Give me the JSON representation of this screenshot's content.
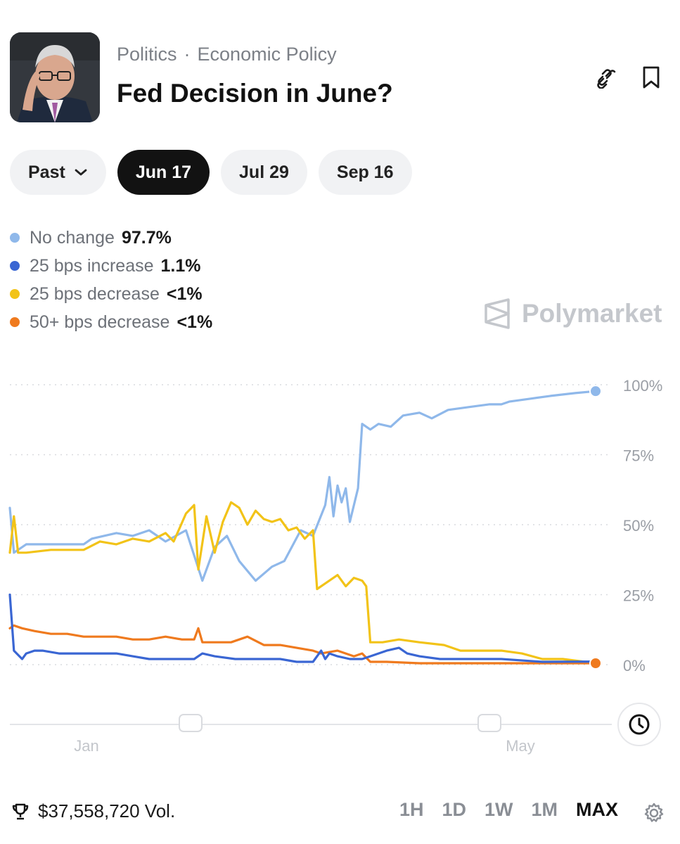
{
  "header": {
    "category": "Politics",
    "separator": "·",
    "subcategory": "Economic Policy",
    "title": "Fed Decision in June?"
  },
  "date_tabs": [
    {
      "label": "Past",
      "active": false,
      "dropdown": true
    },
    {
      "label": "Jun 17",
      "active": true
    },
    {
      "label": "Jul 29",
      "active": false
    },
    {
      "label": "Sep 16",
      "active": false
    }
  ],
  "legend": [
    {
      "name": "No change",
      "value": "97.7%",
      "color": "#8fb8ea"
    },
    {
      "name": "25 bps increase",
      "value": "1.1%",
      "color": "#3a66d3"
    },
    {
      "name": "25 bps decrease",
      "value": "<1%",
      "color": "#f2c318"
    },
    {
      "name": "50+ bps decrease",
      "value": "<1%",
      "color": "#ef7a1e"
    }
  ],
  "watermark": "Polymarket",
  "chart_data": {
    "type": "line",
    "x_ticks": [
      "Jan",
      "May"
    ],
    "y_ticks": [
      "100%",
      "75%",
      "50%",
      "25%",
      "0%"
    ],
    "ylim": [
      0,
      100
    ],
    "grid": "dotted horizontal",
    "series": [
      {
        "name": "No change",
        "color": "#8fb8ea",
        "points": [
          [
            0,
            56
          ],
          [
            1,
            40
          ],
          [
            4,
            43
          ],
          [
            10,
            43
          ],
          [
            18,
            43
          ],
          [
            20,
            45
          ],
          [
            26,
            47
          ],
          [
            30,
            46
          ],
          [
            34,
            48
          ],
          [
            38,
            44
          ],
          [
            43,
            48
          ],
          [
            47,
            30
          ],
          [
            50,
            42
          ],
          [
            53,
            46
          ],
          [
            56,
            37
          ],
          [
            60,
            30
          ],
          [
            64,
            35
          ],
          [
            67,
            37
          ],
          [
            71,
            48
          ],
          [
            74,
            46
          ],
          [
            77,
            57
          ],
          [
            78,
            67
          ],
          [
            79,
            53
          ],
          [
            80,
            64
          ],
          [
            81,
            58
          ],
          [
            82,
            63
          ],
          [
            83,
            51
          ],
          [
            84,
            57
          ],
          [
            85,
            63
          ],
          [
            86,
            86
          ],
          [
            88,
            84
          ],
          [
            90,
            86
          ],
          [
            93,
            85
          ],
          [
            96,
            89
          ],
          [
            100,
            90
          ],
          [
            103,
            88
          ],
          [
            107,
            91
          ],
          [
            112,
            92
          ],
          [
            117,
            93
          ],
          [
            120,
            93
          ],
          [
            122,
            94
          ],
          [
            127,
            95
          ],
          [
            132,
            96
          ],
          [
            138,
            97
          ],
          [
            143,
            97.7
          ]
        ]
      },
      {
        "name": "25 bps increase",
        "color": "#3a66d3",
        "points": [
          [
            0,
            25
          ],
          [
            1,
            5
          ],
          [
            3,
            2
          ],
          [
            4,
            4
          ],
          [
            6,
            5
          ],
          [
            8,
            5
          ],
          [
            12,
            4
          ],
          [
            18,
            4
          ],
          [
            26,
            4
          ],
          [
            30,
            3
          ],
          [
            34,
            2
          ],
          [
            40,
            2
          ],
          [
            45,
            2
          ],
          [
            47,
            4
          ],
          [
            50,
            3
          ],
          [
            55,
            2
          ],
          [
            60,
            2
          ],
          [
            66,
            2
          ],
          [
            70,
            1
          ],
          [
            74,
            1
          ],
          [
            76,
            5
          ],
          [
            77,
            2
          ],
          [
            78,
            4
          ],
          [
            80,
            3
          ],
          [
            83,
            2
          ],
          [
            86,
            2
          ],
          [
            88,
            3
          ],
          [
            92,
            5
          ],
          [
            95,
            6
          ],
          [
            97,
            4
          ],
          [
            100,
            3
          ],
          [
            105,
            2
          ],
          [
            110,
            2
          ],
          [
            120,
            2
          ],
          [
            130,
            1
          ],
          [
            143,
            1.1
          ]
        ]
      },
      {
        "name": "25 bps decrease",
        "color": "#f2c318",
        "points": [
          [
            0,
            40
          ],
          [
            1,
            53
          ],
          [
            2,
            40
          ],
          [
            4,
            40
          ],
          [
            10,
            41
          ],
          [
            18,
            41
          ],
          [
            22,
            44
          ],
          [
            26,
            43
          ],
          [
            30,
            45
          ],
          [
            34,
            44
          ],
          [
            38,
            47
          ],
          [
            40,
            44
          ],
          [
            43,
            54
          ],
          [
            45,
            57
          ],
          [
            46,
            34
          ],
          [
            48,
            53
          ],
          [
            50,
            40
          ],
          [
            52,
            51
          ],
          [
            54,
            58
          ],
          [
            55,
            57
          ],
          [
            56,
            56
          ],
          [
            58,
            50
          ],
          [
            60,
            55
          ],
          [
            62,
            52
          ],
          [
            64,
            51
          ],
          [
            66,
            52
          ],
          [
            68,
            48
          ],
          [
            70,
            49
          ],
          [
            72,
            45
          ],
          [
            74,
            48
          ],
          [
            75,
            27
          ],
          [
            77,
            29
          ],
          [
            80,
            32
          ],
          [
            82,
            28
          ],
          [
            84,
            31
          ],
          [
            86,
            30
          ],
          [
            87,
            28
          ],
          [
            88,
            8
          ],
          [
            91,
            8
          ],
          [
            95,
            9
          ],
          [
            100,
            8
          ],
          [
            106,
            7
          ],
          [
            110,
            5
          ],
          [
            115,
            5
          ],
          [
            120,
            5
          ],
          [
            125,
            4
          ],
          [
            130,
            2
          ],
          [
            135,
            2
          ],
          [
            143,
            0.5
          ]
        ]
      },
      {
        "name": "50+ bps decrease",
        "color": "#ef7a1e",
        "points": [
          [
            0,
            13
          ],
          [
            1,
            14
          ],
          [
            3,
            13
          ],
          [
            6,
            12
          ],
          [
            10,
            11
          ],
          [
            14,
            11
          ],
          [
            18,
            10
          ],
          [
            22,
            10
          ],
          [
            26,
            10
          ],
          [
            30,
            9
          ],
          [
            34,
            9
          ],
          [
            38,
            10
          ],
          [
            42,
            9
          ],
          [
            45,
            9
          ],
          [
            46,
            13
          ],
          [
            47,
            8
          ],
          [
            50,
            8
          ],
          [
            54,
            8
          ],
          [
            58,
            10
          ],
          [
            62,
            7
          ],
          [
            66,
            7
          ],
          [
            70,
            6
          ],
          [
            74,
            5
          ],
          [
            76,
            4
          ],
          [
            80,
            5
          ],
          [
            84,
            3
          ],
          [
            86,
            4
          ],
          [
            88,
            1
          ],
          [
            92,
            1
          ],
          [
            100,
            0.5
          ],
          [
            110,
            0.5
          ],
          [
            120,
            0.5
          ],
          [
            130,
            0.5
          ],
          [
            143,
            0.5
          ]
        ]
      }
    ]
  },
  "footer": {
    "volume": "$37,558,720 Vol.",
    "ranges": [
      {
        "label": "1H",
        "active": false
      },
      {
        "label": "1D",
        "active": false
      },
      {
        "label": "1W",
        "active": false
      },
      {
        "label": "1M",
        "active": false
      },
      {
        "label": "MAX",
        "active": true
      }
    ]
  }
}
